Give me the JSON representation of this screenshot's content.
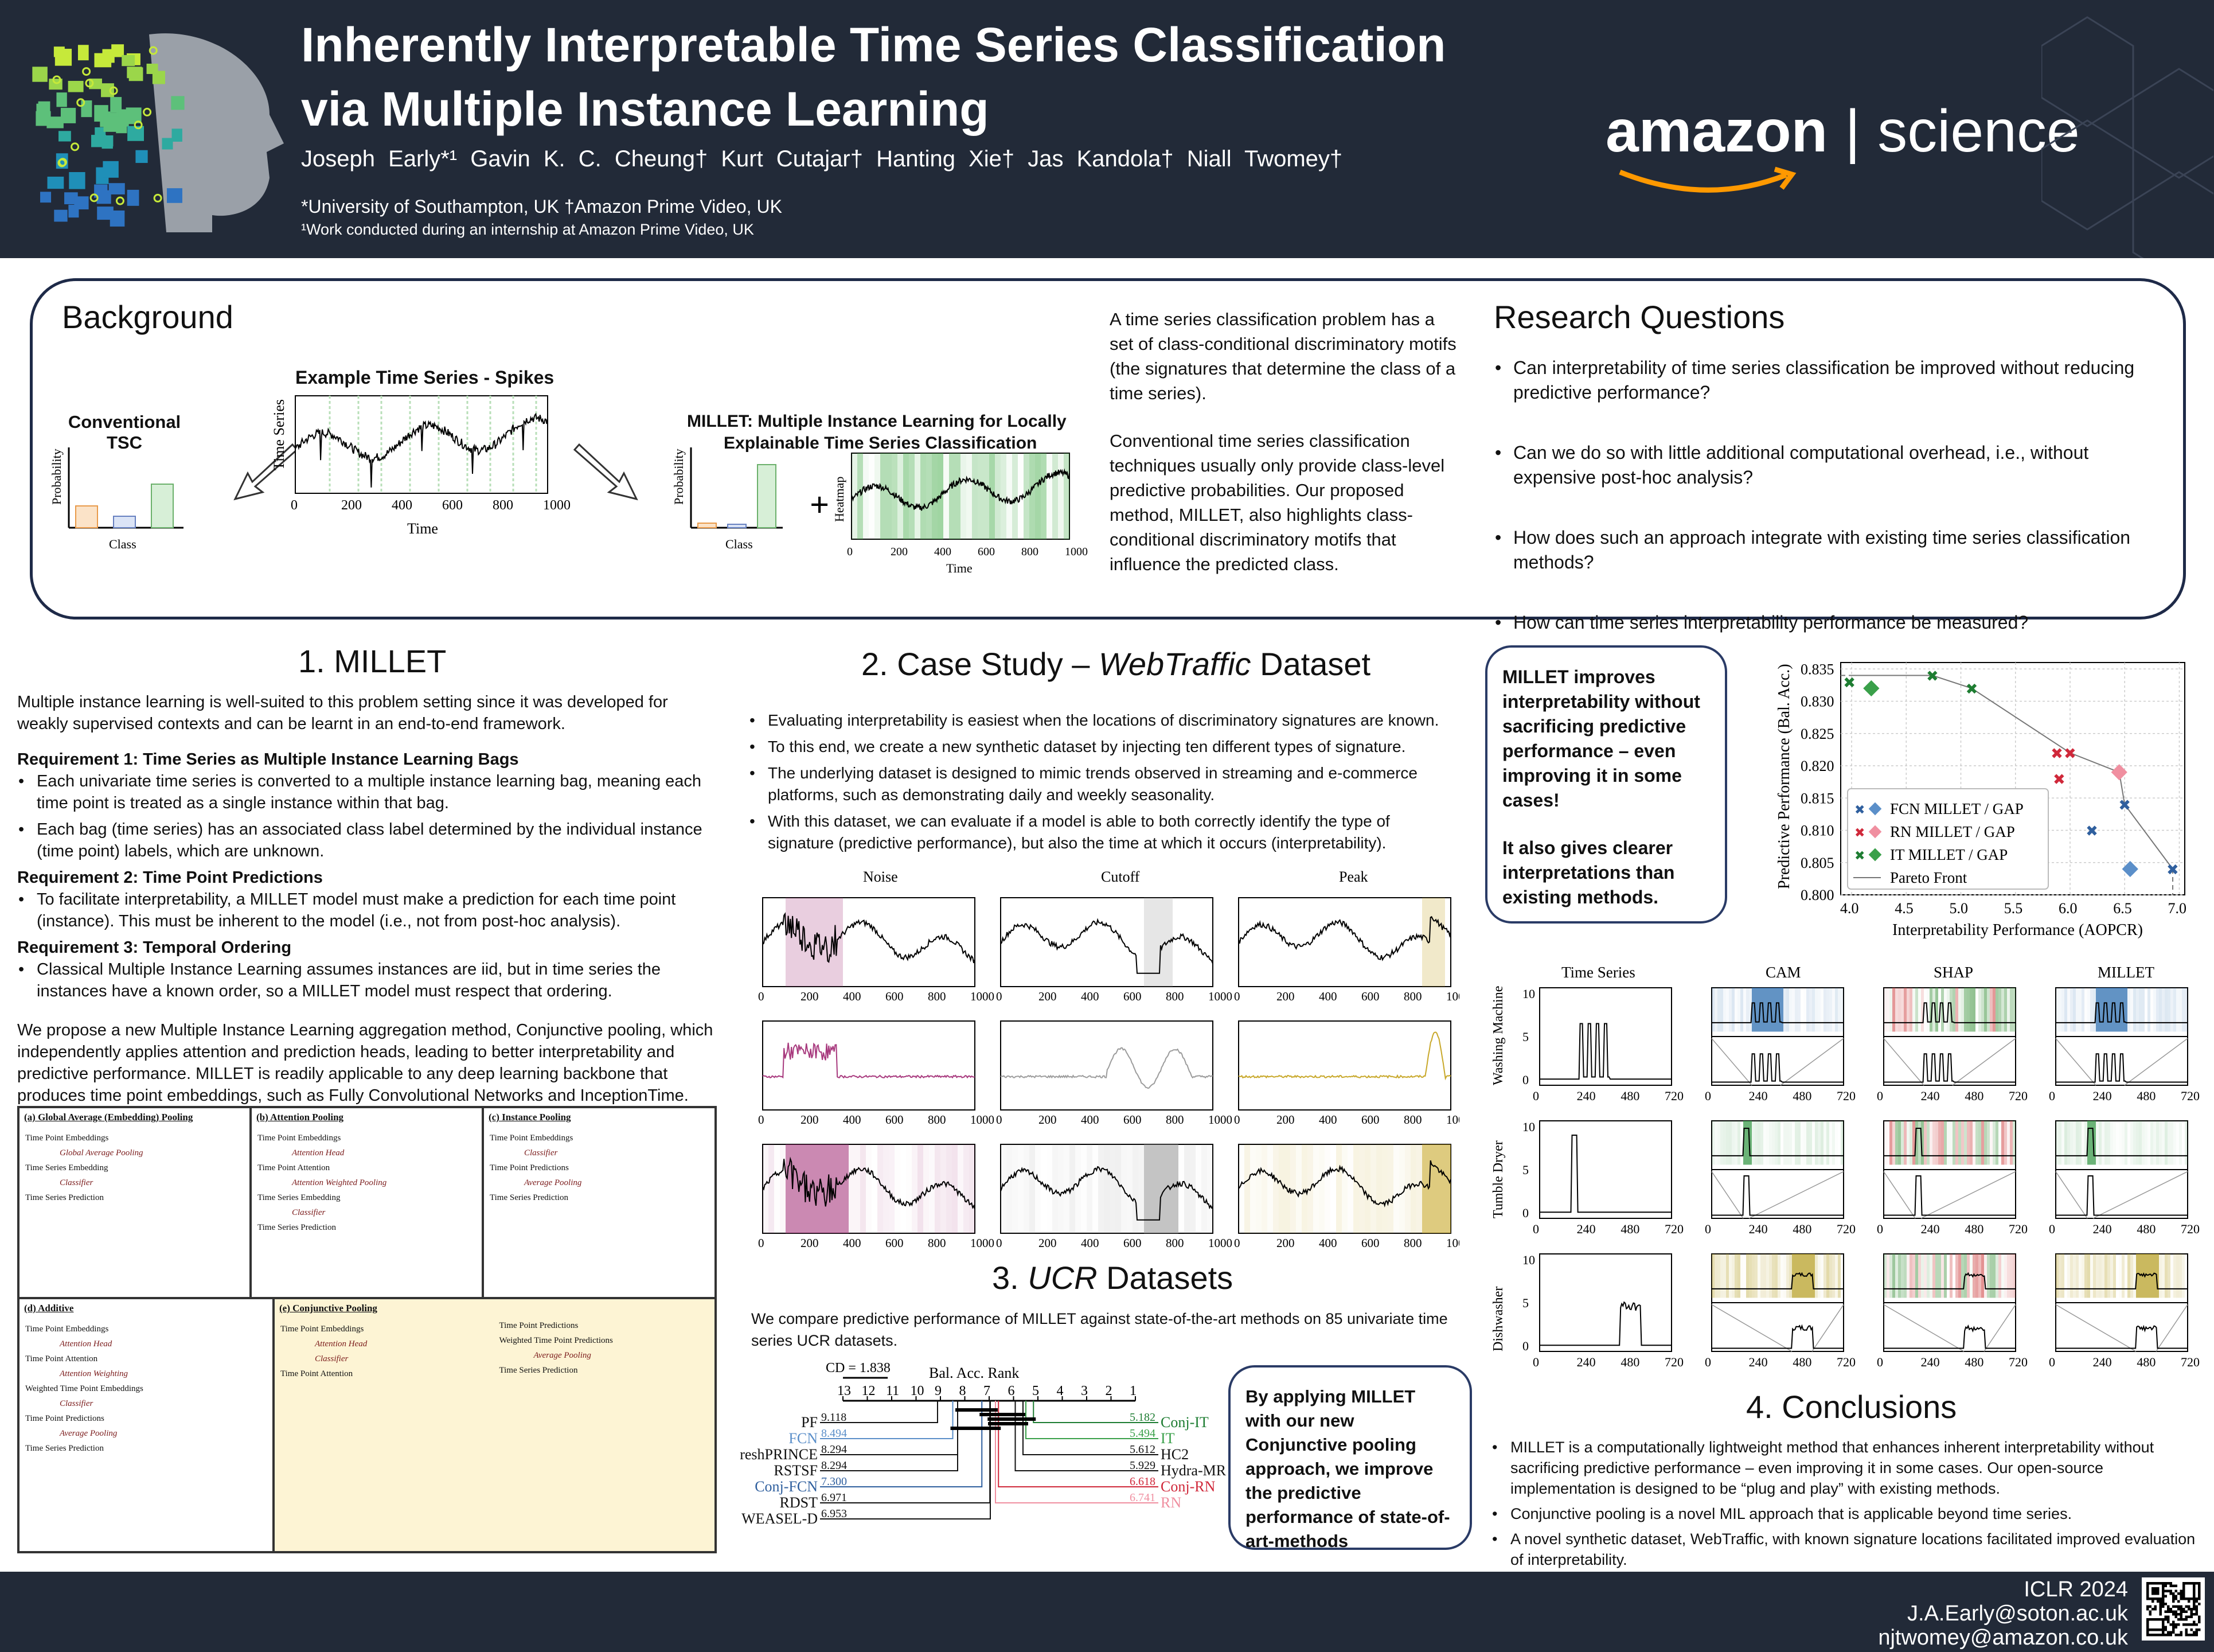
{
  "header": {
    "title_line1": "Inherently Interpretable Time Series Classification",
    "title_line2": "via Multiple Instance Learning",
    "authors": "Joseph Early*¹  Gavin K. C. Cheung†  Kurt Cutajar†  Hanting Xie†  Jas Kandola†  Niall Twomey†",
    "affiliations": "*University of Southampton, UK      †Amazon Prime Video, UK",
    "footnote": "¹Work conducted during an internship at Amazon Prime Video, UK",
    "brand_left": "amazon",
    "brand_right": "science"
  },
  "background": {
    "heading": "Background",
    "conventional_label": "Conventional TSC",
    "example_title": "Example Time Series - Spikes",
    "millet_title_l1": "MILLET: Multiple Instance Learning for Locally",
    "millet_title_l2": "Explainable Time Series Classification",
    "prob_label": "Probability",
    "class_label": "Class",
    "time_label": "Time",
    "ts_label": "Time Series",
    "heatmap_label": "Heatmap",
    "ticks": [
      "0",
      "200",
      "400",
      "600",
      "800",
      "1000"
    ],
    "para1": "A time series classification problem has a set of class-conditional discriminatory motifs (the signatures that determine the class of a time series).",
    "para2": "Conventional time series classification techniques usually only provide class-level predictive probabilities. Our proposed method, MILLET, also highlights class-conditional discriminatory motifs that influence the predicted class."
  },
  "research": {
    "heading": "Research Questions",
    "q1": "Can interpretability of time series classification be improved without reducing predictive performance?",
    "q2": "Can we do so with little additional computational overhead, i.e., without expensive post-hoc analysis?",
    "q3": "How does such an approach integrate with existing time series classification methods?",
    "q4": "How can time series interpretability performance be measured?"
  },
  "millet": {
    "heading": "1. MILLET",
    "intro": "Multiple instance learning is well-suited to this problem setting since it was developed for weakly supervised contexts and can be learnt in an end-to-end framework.",
    "req1": "Requirement 1: Time Series as Multiple Instance Learning Bags",
    "req1_b1": "Each univariate time series is converted to a multiple instance learning bag, meaning each time point is treated as a single instance within that bag.",
    "req1_b2": "Each bag (time series) has an associated class label determined by the individual instance (time point) labels, which are unknown.",
    "req2": "Requirement 2: Time Point Predictions",
    "req2_b1": "To facilitate interpretability, a MILLET model must make a prediction for each time point (instance). This must be inherent to the model (i.e., not from post-hoc analysis).",
    "req3": "Requirement 3: Temporal Ordering",
    "req3_b1": "Classical Multiple Instance Learning assumes instances are iid, but in time series the instances have a known order, so a MILLET model must respect that ordering.",
    "proposal": "We propose a new Multiple Instance Learning aggregation method, Conjunctive pooling, which independently applies attention and prediction heads, leading to better interpretability and predictive performance. MILLET is readily applicable to any deep learning backbone that produces time point embeddings, such as Fully Convolutional Networks and InceptionTime.",
    "panels": [
      {
        "label": "(a) Global Average (Embedding) Pooling",
        "rows": [
          "Time Point Embeddings",
          "Global Average Pooling",
          "Time Series Embedding",
          "Classifier",
          "Time Series Prediction"
        ]
      },
      {
        "label": "(b) Attention Pooling",
        "rows": [
          "Time Point Embeddings",
          "Attention Head",
          "Time Point Attention",
          "Attention Weighted Pooling",
          "Time Series Embedding",
          "Classifier",
          "Time Series Prediction"
        ]
      },
      {
        "label": "(c) Instance Pooling",
        "rows": [
          "Time Point Embeddings",
          "Classifier",
          "Time Point Predictions",
          "Average Pooling",
          "Time Series Prediction"
        ]
      },
      {
        "label": "(d) Additive",
        "rows": [
          "Time Point Embeddings",
          "Attention Head",
          "Time Point Attention",
          "Attention Weighting",
          "Weighted Time Point Embeddings",
          "Classifier",
          "Time Point Predictions",
          "Average Pooling",
          "Time Series Prediction"
        ]
      },
      {
        "label": "(e) Conjunctive Pooling",
        "rows": [
          "Time Point Embeddings",
          "Attention Head",
          "Classifier",
          "Time Point Attention",
          "Time Point Predictions",
          "Weighted Time Point Predictions",
          "Average Pooling",
          "Time Series Prediction"
        ]
      }
    ]
  },
  "case": {
    "heading_a": "2. Case Study – ",
    "heading_b": "WebTraffic",
    "heading_c": " Dataset",
    "b1": "Evaluating interpretability is easiest when the locations of discriminatory signatures are known.",
    "b2": "To this end, we create a new synthetic dataset by injecting ten different types of signature.",
    "b3": "The underlying dataset is designed to mimic trends observed in streaming and e-commerce platforms, such as demonstrating daily and weekly seasonality.",
    "b4": "With this dataset, we can evaluate if a model is able to both correctly identify the type of signature (predictive performance), but also the time at which it occurs (interpretability).",
    "col_titles": [
      "Noise",
      "Cutoff",
      "Peak"
    ],
    "ticks": [
      "0",
      "200",
      "400",
      "600",
      "800",
      "1000"
    ]
  },
  "ucr": {
    "heading_a": "3. ",
    "heading_b": "UCR",
    "heading_c": " Datasets",
    "text": "We compare predictive performance of MILLET against state-of-the-art methods on 85 univariate time series UCR datasets.",
    "cd_label": "CD = 1.838",
    "axis_title": "Bal. Acc. Rank",
    "axis_ticks": [
      "13",
      "12",
      "11",
      "10",
      "9",
      "8",
      "7",
      "6",
      "5",
      "4",
      "3",
      "2",
      "1"
    ],
    "left_methods": [
      {
        "name": "PF",
        "rank": "9.118",
        "color": "#111111"
      },
      {
        "name": "FCN",
        "rank": "8.494",
        "color": "#5b8fc9"
      },
      {
        "name": "FreshPRINCE",
        "rank": "8.294",
        "color": "#111111"
      },
      {
        "name": "RSTSF",
        "rank": "8.294",
        "color": "#111111"
      },
      {
        "name": "Conj-FCN",
        "rank": "7.300",
        "color": "#2f5f9e"
      },
      {
        "name": "RDST",
        "rank": "6.971",
        "color": "#111111"
      },
      {
        "name": "WEASEL-D",
        "rank": "6.953",
        "color": "#111111"
      }
    ],
    "right_methods": [
      {
        "name": "Conj-IT",
        "rank": "5.182",
        "color": "#1e7d32"
      },
      {
        "name": "IT",
        "rank": "5.494",
        "color": "#3aa04a"
      },
      {
        "name": "HC2",
        "rank": "5.612",
        "color": "#111111"
      },
      {
        "name": "Hydra-MR",
        "rank": "5.929",
        "color": "#111111"
      },
      {
        "name": "Conj-RN",
        "rank": "6.618",
        "color": "#d0283a"
      },
      {
        "name": "RN",
        "rank": "6.741",
        "color": "#f08fa0"
      }
    ],
    "callout": "By applying MILLET with our new Conjunctive pooling approach, we improve the predictive performance of state-of-art-methods"
  },
  "results": {
    "callout_l1": "MILLET improves interpretability without sacrificing predictive performance – even improving it in some cases!",
    "callout_l2": "It also gives clearer interpretations than existing methods.",
    "grid_cols": [
      "Time Series",
      "CAM",
      "SHAP",
      "MILLET"
    ],
    "grid_rows": [
      "Washing Machine",
      "Tumble Dryer",
      "Dishwasher"
    ],
    "grid_ticks": [
      "0",
      "240",
      "480",
      "720"
    ],
    "grid_y": [
      "0",
      "5",
      "10"
    ]
  },
  "chart_data": {
    "type": "scatter",
    "title": "",
    "xlabel": "Interpretability Performance (AOPCR)",
    "ylabel": "Predictive Performance (Bal. Acc.)",
    "xlim": [
      3.9,
      7.05
    ],
    "ylim": [
      0.8,
      0.836
    ],
    "xticks": [
      "4.0",
      "4.5",
      "5.0",
      "5.5",
      "6.0",
      "6.5",
      "7.0"
    ],
    "yticks": [
      "0.800",
      "0.805",
      "0.810",
      "0.815",
      "0.820",
      "0.825",
      "0.830",
      "0.835"
    ],
    "grid": true,
    "legend_placement": "bottom-left",
    "series": [
      {
        "name": "FCN MILLET / GAP",
        "color": "#2f5f9e",
        "points": [
          {
            "x": 6.94,
            "y": 0.804,
            "marker": "x"
          },
          {
            "x": 6.5,
            "y": 0.814,
            "marker": "x"
          },
          {
            "x": 6.2,
            "y": 0.81,
            "marker": "x"
          },
          {
            "x": 6.55,
            "y": 0.804,
            "marker": "d"
          }
        ]
      },
      {
        "name": "RN MILLET / GAP",
        "color": "#d0283a",
        "points": [
          {
            "x": 5.88,
            "y": 0.822,
            "marker": "x"
          },
          {
            "x": 6.0,
            "y": 0.822,
            "marker": "x"
          },
          {
            "x": 5.9,
            "y": 0.818,
            "marker": "x"
          },
          {
            "x": 6.45,
            "y": 0.819,
            "marker": "d"
          }
        ]
      },
      {
        "name": "IT MILLET / GAP",
        "color": "#1e7d32",
        "points": [
          {
            "x": 3.98,
            "y": 0.833,
            "marker": "x"
          },
          {
            "x": 4.74,
            "y": 0.834,
            "marker": "x"
          },
          {
            "x": 5.1,
            "y": 0.832,
            "marker": "x"
          },
          {
            "x": 4.18,
            "y": 0.832,
            "marker": "d"
          }
        ]
      },
      {
        "name": "Pareto Front",
        "color": "#777777",
        "points": [
          {
            "x": 3.98,
            "y": 0.834
          },
          {
            "x": 4.74,
            "y": 0.834
          },
          {
            "x": 5.1,
            "y": 0.832
          },
          {
            "x": 6.0,
            "y": 0.822
          },
          {
            "x": 6.45,
            "y": 0.819
          },
          {
            "x": 6.5,
            "y": 0.814
          },
          {
            "x": 6.94,
            "y": 0.804
          }
        ]
      }
    ]
  },
  "conclusions": {
    "heading": "4. Conclusions",
    "b1": "MILLET is a computationally lightweight method that enhances inherent interpretability without sacrificing predictive performance – even improving it in some cases. Our open-source implementation is designed to be “plug and play” with existing methods.",
    "b2": "Conjunctive pooling is a novel MIL approach that is applicable beyond time series.",
    "b3": "A novel synthetic dataset, WebTraffic, with known signature locations facilitated improved evaluation of interpretability."
  },
  "footer": {
    "venue": "ICLR 2024",
    "email1": "J.A.Early@soton.ac.uk",
    "email2": "njtwomey@amazon.co.uk"
  },
  "icons": [
    "head-logo-icon",
    "qr-code-icon",
    "amazon-smile-icon"
  ]
}
